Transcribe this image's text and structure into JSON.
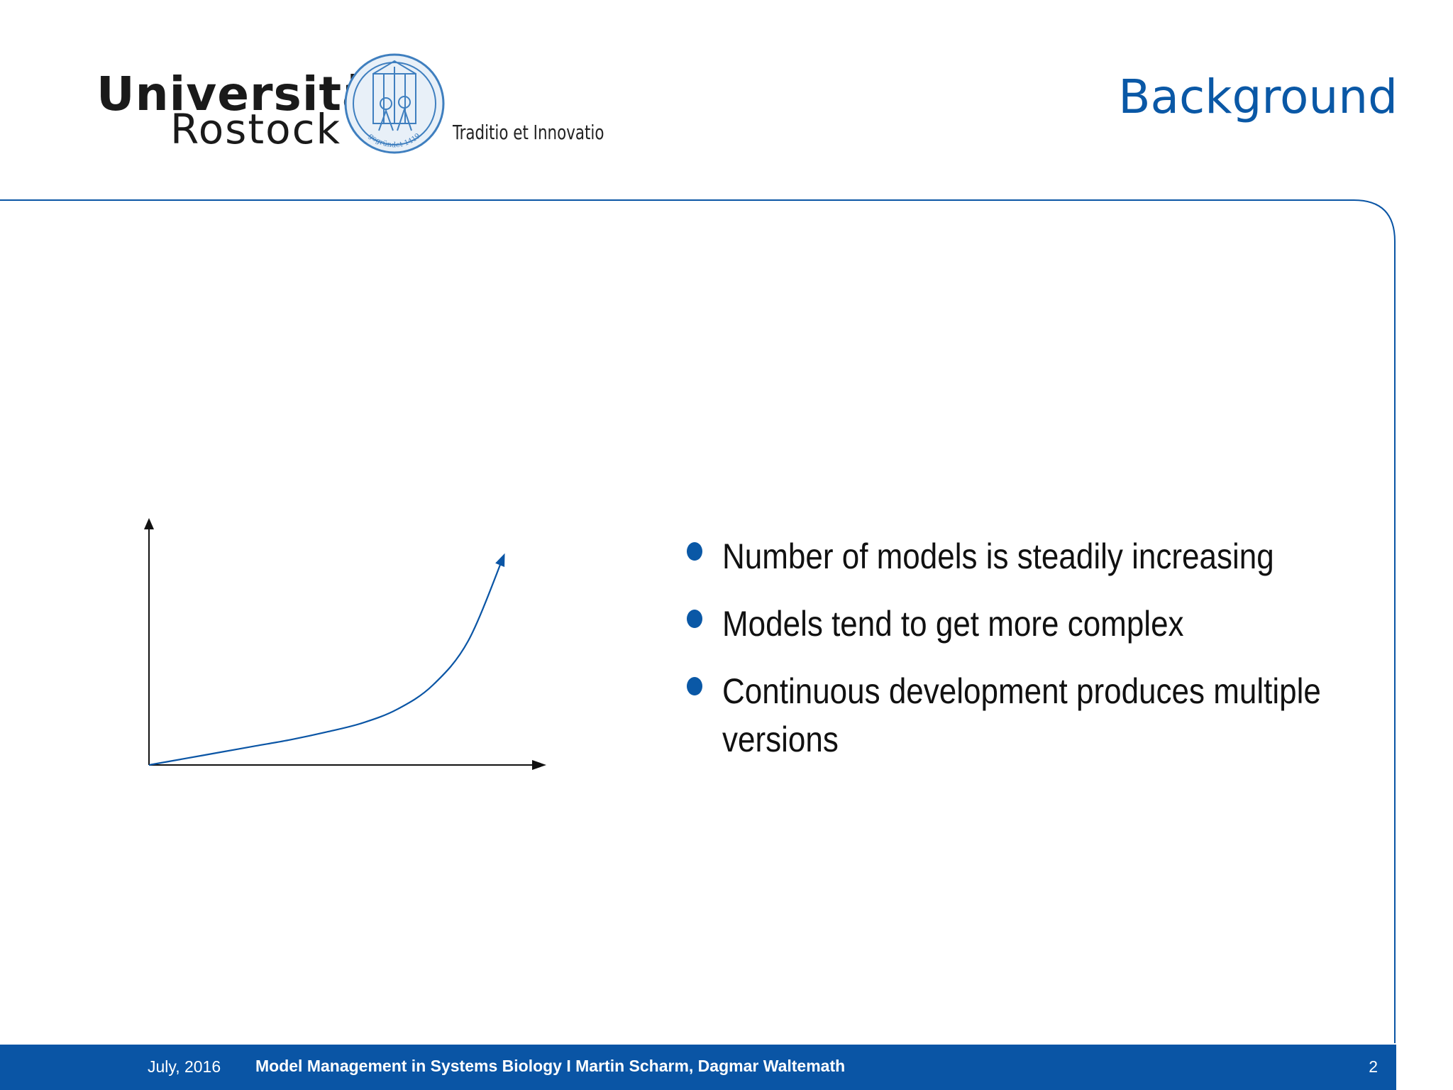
{
  "header": {
    "logo_line1": "Universität",
    "logo_line2": "Rostock",
    "motto": "Traditio et Innovatio",
    "title": "Background"
  },
  "seal": {
    "inscription": "gegründet 1419"
  },
  "bullets": [
    "Number of models is steadily increasing",
    "Models tend to get more complex",
    "Continuous development produces multiple versions"
  ],
  "footer": {
    "date": "July, 2016",
    "talk": "Model Management in Systems Biology  I  Martin Scharm, Dagmar Waltemath",
    "page": "2"
  },
  "colors": {
    "accent": "#0a55a5",
    "text": "#111111"
  },
  "chart_data": {
    "type": "line",
    "title": "",
    "xlabel": "",
    "ylabel": "",
    "x": [
      0,
      1,
      2,
      3,
      4,
      5,
      6,
      7,
      8,
      9,
      10
    ],
    "series": [
      {
        "values": [
          0,
          0.5,
          1.0,
          1.5,
          2.0,
          2.6,
          3.3,
          4.4,
          6.3,
          9.8,
          16.5
        ]
      }
    ],
    "xlim": [
      0,
      10.8
    ],
    "ylim": [
      0,
      16.8
    ],
    "grid": false,
    "axes": "arrows"
  }
}
